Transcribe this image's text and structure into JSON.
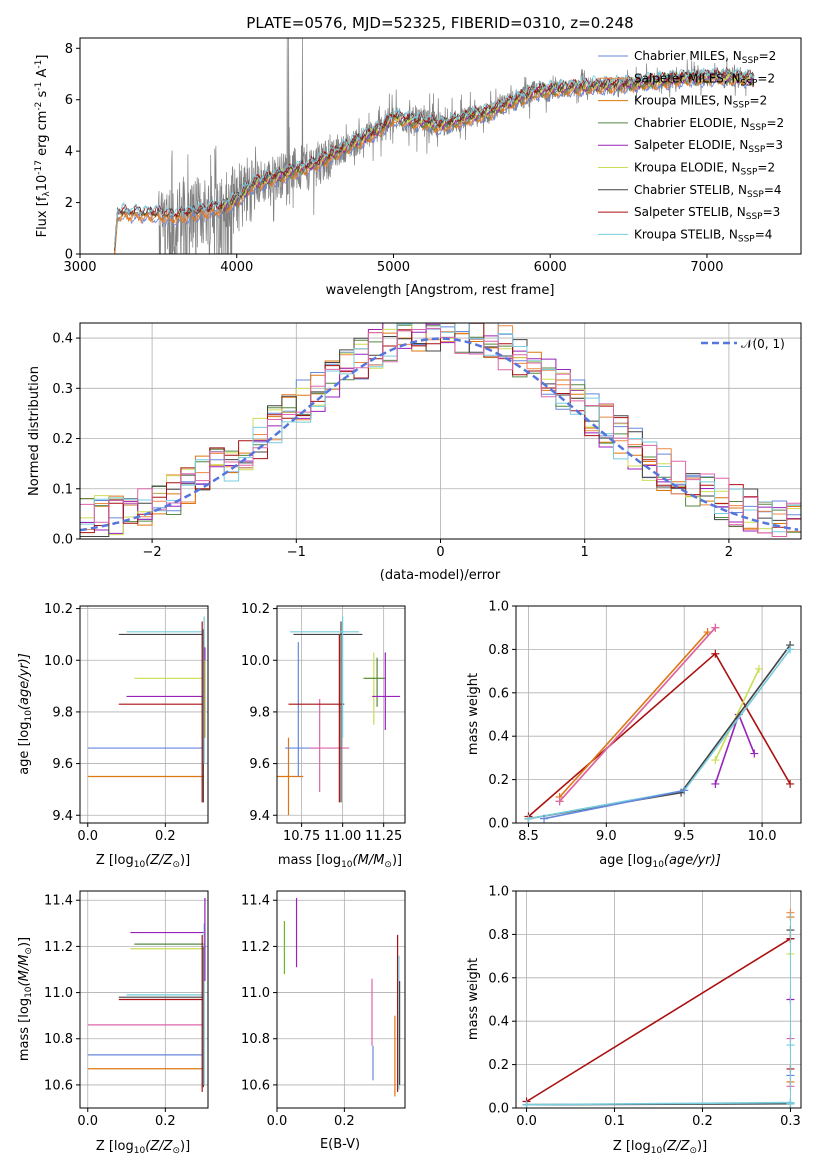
{
  "figure": {
    "title": "PLATE=0576, MJD=52325, FIBERID=0310, z=0.248"
  },
  "colors": {
    "chabrier_miles": "#6688dd",
    "salpeter_miles": "#ee8844",
    "kroupa_miles": "#dd7711",
    "chabrier_elodie": "#558844",
    "salpeter_elodie": "#9922bb",
    "kroupa_elodie": "#ccdd55",
    "chabrier_stelib": "#444444",
    "salpeter_stelib": "#aa1111",
    "kroupa_stelib": "#77ccdd",
    "data": "#808080",
    "gauss": "#5577dd",
    "extra_pink": "#dd66aa",
    "extra_green": "#66bb22"
  },
  "chart_data": [
    {
      "type": "line",
      "panel": "spectrum",
      "title": "PLATE=0576, MJD=52325, FIBERID=0310, z=0.248",
      "xlabel": "wavelength [Angstrom, rest frame]",
      "ylabel_main": "Flux [f",
      "ylabel_sub": "λ",
      "ylabel_rest": "10",
      "ylabel_exp": "-17",
      "ylabel_unit": " erg cm",
      "ylabel_exp2": "-2",
      "ylabel_s": " s",
      "ylabel_exp3": "-1",
      "ylabel_a": " A",
      "ylabel_exp4": "-1",
      "ylabel_end": "]",
      "xlim": [
        3000,
        7600
      ],
      "ylim": [
        0,
        8.4
      ],
      "xticks": [
        "3000",
        "4000",
        "5000",
        "6000",
        "7000"
      ],
      "xtick_values": [
        3000,
        4000,
        5000,
        6000,
        7000
      ],
      "yticks": [
        "0",
        "2",
        "4",
        "6",
        "8"
      ],
      "ytick_values": [
        0,
        2,
        4,
        6,
        8
      ],
      "legend": [
        {
          "name": "Chabrier MILES, N",
          "sub": "SSP",
          "tail": "=2",
          "color_key": "chabrier_miles"
        },
        {
          "name": "Salpeter MILES, N",
          "sub": "SSP",
          "tail": "=2",
          "color_key": "salpeter_miles"
        },
        {
          "name": "Kroupa MILES, N",
          "sub": "SSP",
          "tail": "=2",
          "color_key": "kroupa_miles"
        },
        {
          "name": "Chabrier ELODIE, N",
          "sub": "SSP",
          "tail": "=2",
          "color_key": "chabrier_elodie"
        },
        {
          "name": "Salpeter ELODIE, N",
          "sub": "SSP",
          "tail": "=3",
          "color_key": "salpeter_elodie"
        },
        {
          "name": "Kroupa ELODIE, N",
          "sub": "SSP",
          "tail": "=2",
          "color_key": "kroupa_elodie"
        },
        {
          "name": "Chabrier STELIB, N",
          "sub": "SSP",
          "tail": "=4",
          "color_key": "chabrier_stelib"
        },
        {
          "name": "Salpeter STELIB, N",
          "sub": "SSP",
          "tail": "=3",
          "color_key": "salpeter_stelib"
        },
        {
          "name": "Kroupa STELIB, N",
          "sub": "SSP",
          "tail": "=4",
          "color_key": "kroupa_stelib"
        }
      ],
      "model_trend": {
        "x": [
          3220,
          3240,
          3500,
          3600,
          3900,
          4000,
          4100,
          4500,
          4900,
          5000,
          5300,
          5600,
          5900,
          6200,
          6500,
          6800,
          7100,
          7300
        ],
        "y": [
          0,
          1.6,
          1.55,
          1.45,
          1.8,
          2.1,
          2.7,
          3.5,
          4.8,
          5.3,
          5.0,
          5.5,
          6.3,
          6.5,
          6.6,
          6.8,
          6.9,
          6.8
        ]
      },
      "data_noise_note": ""
    },
    {
      "type": "line",
      "panel": "residuals",
      "xlabel": "(data-model)/error",
      "ylabel": "Normed distribution",
      "xlim": [
        -2.5,
        2.5
      ],
      "ylim": [
        0,
        0.43
      ],
      "xticks": [
        "−2",
        "−1",
        "0",
        "1",
        "2"
      ],
      "xtick_values": [
        -2,
        -1,
        0,
        1,
        2
      ],
      "yticks": [
        "0.0",
        "0.1",
        "0.2",
        "0.3",
        "0.4"
      ],
      "ytick_values": [
        0,
        0.1,
        0.2,
        0.3,
        0.4
      ],
      "legend_label": "𝒩(0, 1)",
      "gaussian": {
        "mu": 0,
        "sigma": 1
      }
    },
    {
      "type": "scatter",
      "panel": "age_vs_Z",
      "xlabel": "Z [log",
      "xlabel_sub": "10",
      "xlabel_rest": "(Z/Z",
      "xlabel_sun": "⊙",
      "xlabel_end": ")]",
      "ylabel": "age  [log",
      "ylabel_sub": "10",
      "ylabel_rest": "(age/yr)]",
      "xlim": [
        -0.02,
        0.31
      ],
      "ylim": [
        9.37,
        10.21
      ],
      "xticks": [
        "0.0",
        "0.2"
      ],
      "xtick_values": [
        0.0,
        0.2
      ],
      "yticks": [
        "9.4",
        "9.6",
        "9.8",
        "10.0",
        "10.2"
      ],
      "ytick_values": [
        9.4,
        9.6,
        9.8,
        10.0,
        10.2
      ],
      "hbars": [
        {
          "x0": 0.0,
          "x1": 0.3,
          "y": 9.55,
          "c": "kroupa_miles"
        },
        {
          "x0": 0.0,
          "x1": 0.3,
          "y": 9.66,
          "c": "chabrier_miles"
        },
        {
          "x0": 0.08,
          "x1": 0.3,
          "y": 9.83,
          "c": "salpeter_stelib"
        },
        {
          "x0": 0.1,
          "x1": 0.3,
          "y": 9.86,
          "c": "salpeter_elodie"
        },
        {
          "x0": 0.12,
          "x1": 0.3,
          "y": 9.93,
          "c": "kroupa_elodie"
        },
        {
          "x0": 0.08,
          "x1": 0.3,
          "y": 10.1,
          "c": "chabrier_stelib"
        },
        {
          "x0": 0.1,
          "x1": 0.3,
          "y": 10.11,
          "c": "kroupa_stelib"
        }
      ],
      "vbars": [
        {
          "x": 0.295,
          "y0": 9.45,
          "y1": 10.15,
          "c": "salpeter_stelib"
        },
        {
          "x": 0.298,
          "y0": 9.45,
          "y1": 10.12,
          "c": "chabrier_stelib"
        },
        {
          "x": 0.3,
          "y0": 9.6,
          "y1": 10.17,
          "c": "kroupa_stelib"
        },
        {
          "x": 0.302,
          "y0": 9.7,
          "y1": 10.05,
          "c": "salpeter_elodie"
        },
        {
          "x": 0.303,
          "y0": 9.7,
          "y1": 10.0,
          "c": "kroupa_elodie"
        }
      ]
    },
    {
      "type": "scatter",
      "panel": "age_vs_mass",
      "xlabel": "mass [log",
      "xlabel_sub": "10",
      "xlabel_rest": "(M/M",
      "xlabel_sun": "⊙",
      "xlabel_end": ")]",
      "xlim": [
        10.6,
        11.38
      ],
      "ylim": [
        9.37,
        10.21
      ],
      "xticks": [
        "10.75",
        "11.00",
        "11.25"
      ],
      "xtick_values": [
        10.75,
        11.0,
        11.25
      ],
      "yticks": [
        "9.4",
        "9.6",
        "9.8",
        "10.0",
        "10.2"
      ],
      "ytick_values": [
        9.4,
        9.6,
        9.8,
        10.0,
        10.2
      ],
      "errorbars": [
        {
          "x": 10.67,
          "xe0": 10.59,
          "xe1": 10.76,
          "y": 9.55,
          "ye0": 9.4,
          "ye1": 9.7,
          "c": "kroupa_miles"
        },
        {
          "x": 10.73,
          "xe0": 10.65,
          "xe1": 10.85,
          "y": 9.66,
          "ye0": 9.55,
          "ye1": 10.07,
          "c": "chabrier_miles"
        },
        {
          "x": 10.86,
          "xe0": 10.8,
          "xe1": 11.04,
          "y": 9.66,
          "ye0": 9.49,
          "ye1": 9.85,
          "c": "extra_pink"
        },
        {
          "x": 10.98,
          "xe0": 10.67,
          "xe1": 11.01,
          "y": 9.83,
          "ye0": 9.45,
          "ye1": 10.1,
          "c": "salpeter_stelib"
        },
        {
          "x": 10.99,
          "xe0": 10.7,
          "xe1": 11.12,
          "y": 10.1,
          "ye0": 9.45,
          "ye1": 10.15,
          "c": "chabrier_stelib"
        },
        {
          "x": 11.0,
          "xe0": 10.68,
          "xe1": 11.1,
          "y": 10.11,
          "ye0": 9.7,
          "ye1": 10.17,
          "c": "kroupa_stelib"
        },
        {
          "x": 11.19,
          "xe0": 11.12,
          "xe1": 11.25,
          "y": 9.93,
          "ye0": 9.75,
          "ye1": 10.03,
          "c": "kroupa_elodie"
        },
        {
          "x": 11.21,
          "xe0": 11.13,
          "xe1": 11.26,
          "y": 9.93,
          "ye0": 9.82,
          "ye1": 10.01,
          "c": "chabrier_elodie"
        },
        {
          "x": 11.26,
          "xe0": 11.18,
          "xe1": 11.35,
          "y": 9.86,
          "ye0": 9.73,
          "ye1": 10.03,
          "c": "salpeter_elodie"
        }
      ]
    },
    {
      "type": "line",
      "panel": "weight_vs_age",
      "xlabel": "age  [log",
      "xlabel_sub": "10",
      "xlabel_rest": "(age/yr)]",
      "ylabel": "mass weight",
      "xlim": [
        8.42,
        10.25
      ],
      "ylim": [
        0,
        1.0
      ],
      "xticks": [
        "8.5",
        "9.0",
        "9.5",
        "10.0"
      ],
      "xtick_values": [
        8.5,
        9.0,
        9.5,
        10.0
      ],
      "yticks": [
        "0.0",
        "0.2",
        "0.4",
        "0.6",
        "0.8",
        "1.0"
      ],
      "ytick_values": [
        0,
        0.2,
        0.4,
        0.6,
        0.8,
        1.0
      ],
      "series": [
        {
          "c": "salpeter_stelib",
          "x": [
            8.5,
            9.7,
            10.18
          ],
          "y": [
            0.03,
            0.78,
            0.18
          ]
        },
        {
          "c": "kroupa_miles",
          "x": [
            8.7,
            9.65
          ],
          "y": [
            0.12,
            0.88
          ]
        },
        {
          "c": "salpeter_miles",
          "x": [
            8.7,
            9.7
          ],
          "y": [
            0.1,
            0.9
          ]
        },
        {
          "c": "extra_pink",
          "x": [
            8.7,
            9.7
          ],
          "y": [
            0.1,
            0.9
          ]
        },
        {
          "c": "salpeter_elodie",
          "x": [
            9.7,
            9.85,
            9.95
          ],
          "y": [
            0.18,
            0.5,
            0.32
          ]
        },
        {
          "c": "kroupa_elodie",
          "x": [
            9.7,
            9.98
          ],
          "y": [
            0.29,
            0.71
          ]
        },
        {
          "c": "chabrier_stelib",
          "x": [
            8.5,
            9.48,
            10.18
          ],
          "y": [
            0.02,
            0.14,
            0.82
          ]
        },
        {
          "c": "kroupa_stelib",
          "x": [
            8.5,
            9.5,
            10.18
          ],
          "y": [
            0.02,
            0.15,
            0.8
          ]
        },
        {
          "c": "chabrier_miles",
          "x": [
            8.6,
            9.5
          ],
          "y": [
            0.02,
            0.15
          ]
        }
      ]
    },
    {
      "type": "scatter",
      "panel": "mass_vs_Z",
      "xlabel": "Z [log",
      "xlabel_sub": "10",
      "xlabel_rest": "(Z/Z",
      "xlabel_sun": "⊙",
      "xlabel_end": ")]",
      "ylabel": "mass [log",
      "ylabel_sub": "10",
      "ylabel_rest": "(M/M",
      "ylabel_sun": "⊙",
      "ylabel_end": ")]",
      "xlim": [
        -0.02,
        0.31
      ],
      "ylim": [
        10.5,
        11.44
      ],
      "xticks": [
        "0.0",
        "0.2"
      ],
      "xtick_values": [
        0.0,
        0.2
      ],
      "yticks": [
        "10.6",
        "10.8",
        "11.0",
        "11.2",
        "11.4"
      ],
      "ytick_values": [
        10.6,
        10.8,
        11.0,
        11.2,
        11.4
      ],
      "hbars": [
        {
          "x0": 0.0,
          "x1": 0.3,
          "y": 10.67,
          "c": "kroupa_miles"
        },
        {
          "x0": 0.0,
          "x1": 0.3,
          "y": 10.73,
          "c": "chabrier_miles"
        },
        {
          "x0": 0.0,
          "x1": 0.3,
          "y": 10.86,
          "c": "extra_pink"
        },
        {
          "x0": 0.08,
          "x1": 0.3,
          "y": 10.97,
          "c": "salpeter_stelib"
        },
        {
          "x0": 0.08,
          "x1": 0.3,
          "y": 10.98,
          "c": "chabrier_stelib"
        },
        {
          "x0": 0.1,
          "x1": 0.3,
          "y": 10.99,
          "c": "kroupa_stelib"
        },
        {
          "x0": 0.11,
          "x1": 0.3,
          "y": 11.19,
          "c": "kroupa_elodie"
        },
        {
          "x0": 0.12,
          "x1": 0.3,
          "y": 11.21,
          "c": "chabrier_elodie"
        },
        {
          "x0": 0.11,
          "x1": 0.3,
          "y": 11.26,
          "c": "salpeter_elodie"
        }
      ],
      "vbars": [
        {
          "x": 0.295,
          "y0": 10.57,
          "y1": 11.25,
          "c": "salpeter_stelib"
        },
        {
          "x": 0.298,
          "y0": 10.59,
          "y1": 11.2,
          "c": "chabrier_stelib"
        },
        {
          "x": 0.3,
          "y0": 10.6,
          "y1": 11.3,
          "c": "kroupa_stelib"
        },
        {
          "x": 0.302,
          "y0": 11.05,
          "y1": 11.41,
          "c": "salpeter_elodie"
        }
      ]
    },
    {
      "type": "scatter",
      "panel": "mass_vs_EBV",
      "xlabel": "E(B-V)",
      "xlim": [
        0.0,
        0.38
      ],
      "ylim": [
        10.5,
        11.44
      ],
      "xticks": [
        "0.0",
        "0.2"
      ],
      "xtick_values": [
        0.0,
        0.2
      ],
      "yticks": [
        "10.6",
        "10.8",
        "11.0",
        "11.2",
        "11.4"
      ],
      "ytick_values": [
        10.6,
        10.8,
        11.0,
        11.2,
        11.4
      ],
      "vbars": [
        {
          "x": 0.022,
          "y0": 11.08,
          "y1": 11.31,
          "c": "extra_green"
        },
        {
          "x": 0.058,
          "y0": 11.11,
          "y1": 11.41,
          "c": "salpeter_elodie"
        },
        {
          "x": 0.282,
          "y0": 10.77,
          "y1": 11.06,
          "c": "extra_pink"
        },
        {
          "x": 0.285,
          "y0": 10.62,
          "y1": 10.77,
          "c": "chabrier_miles"
        },
        {
          "x": 0.35,
          "y0": 10.55,
          "y1": 10.9,
          "c": "kroupa_miles"
        },
        {
          "x": 0.358,
          "y0": 10.57,
          "y1": 11.25,
          "c": "salpeter_stelib"
        },
        {
          "x": 0.362,
          "y0": 10.58,
          "y1": 11.16,
          "c": "kroupa_stelib"
        },
        {
          "x": 0.364,
          "y0": 10.6,
          "y1": 11.05,
          "c": "chabrier_stelib"
        }
      ]
    },
    {
      "type": "line",
      "panel": "weight_vs_Z",
      "xlabel": "Z [log",
      "xlabel_sub": "10",
      "xlabel_rest": "(Z/Z",
      "xlabel_sun": "⊙",
      "xlabel_end": ")]",
      "ylabel": "mass weight",
      "xlim": [
        -0.012,
        0.312
      ],
      "ylim": [
        0,
        1.0
      ],
      "xticks": [
        "0.0",
        "0.1",
        "0.2",
        "0.3"
      ],
      "xtick_values": [
        0.0,
        0.1,
        0.2,
        0.3
      ],
      "yticks": [
        "0.0",
        "0.2",
        "0.4",
        "0.6",
        "0.8",
        "1.0"
      ],
      "ytick_values": [
        0,
        0.2,
        0.4,
        0.6,
        0.8,
        1.0
      ],
      "series": [
        {
          "c": "salpeter_stelib",
          "x": [
            0.0,
            0.3
          ],
          "y": [
            0.03,
            0.78
          ]
        },
        {
          "c": "chabrier_stelib",
          "x": [
            0.0,
            0.3
          ],
          "y": [
            0.015,
            0.02
          ]
        },
        {
          "c": "kroupa_stelib",
          "x": [
            0.0,
            0.3
          ],
          "y": [
            0.015,
            0.025
          ]
        }
      ],
      "markers_at_0.3": [
        0.9,
        0.88,
        0.82,
        0.78,
        0.71,
        0.5,
        0.32,
        0.29,
        0.18,
        0.15,
        0.12,
        0.1,
        0.02
      ]
    }
  ]
}
